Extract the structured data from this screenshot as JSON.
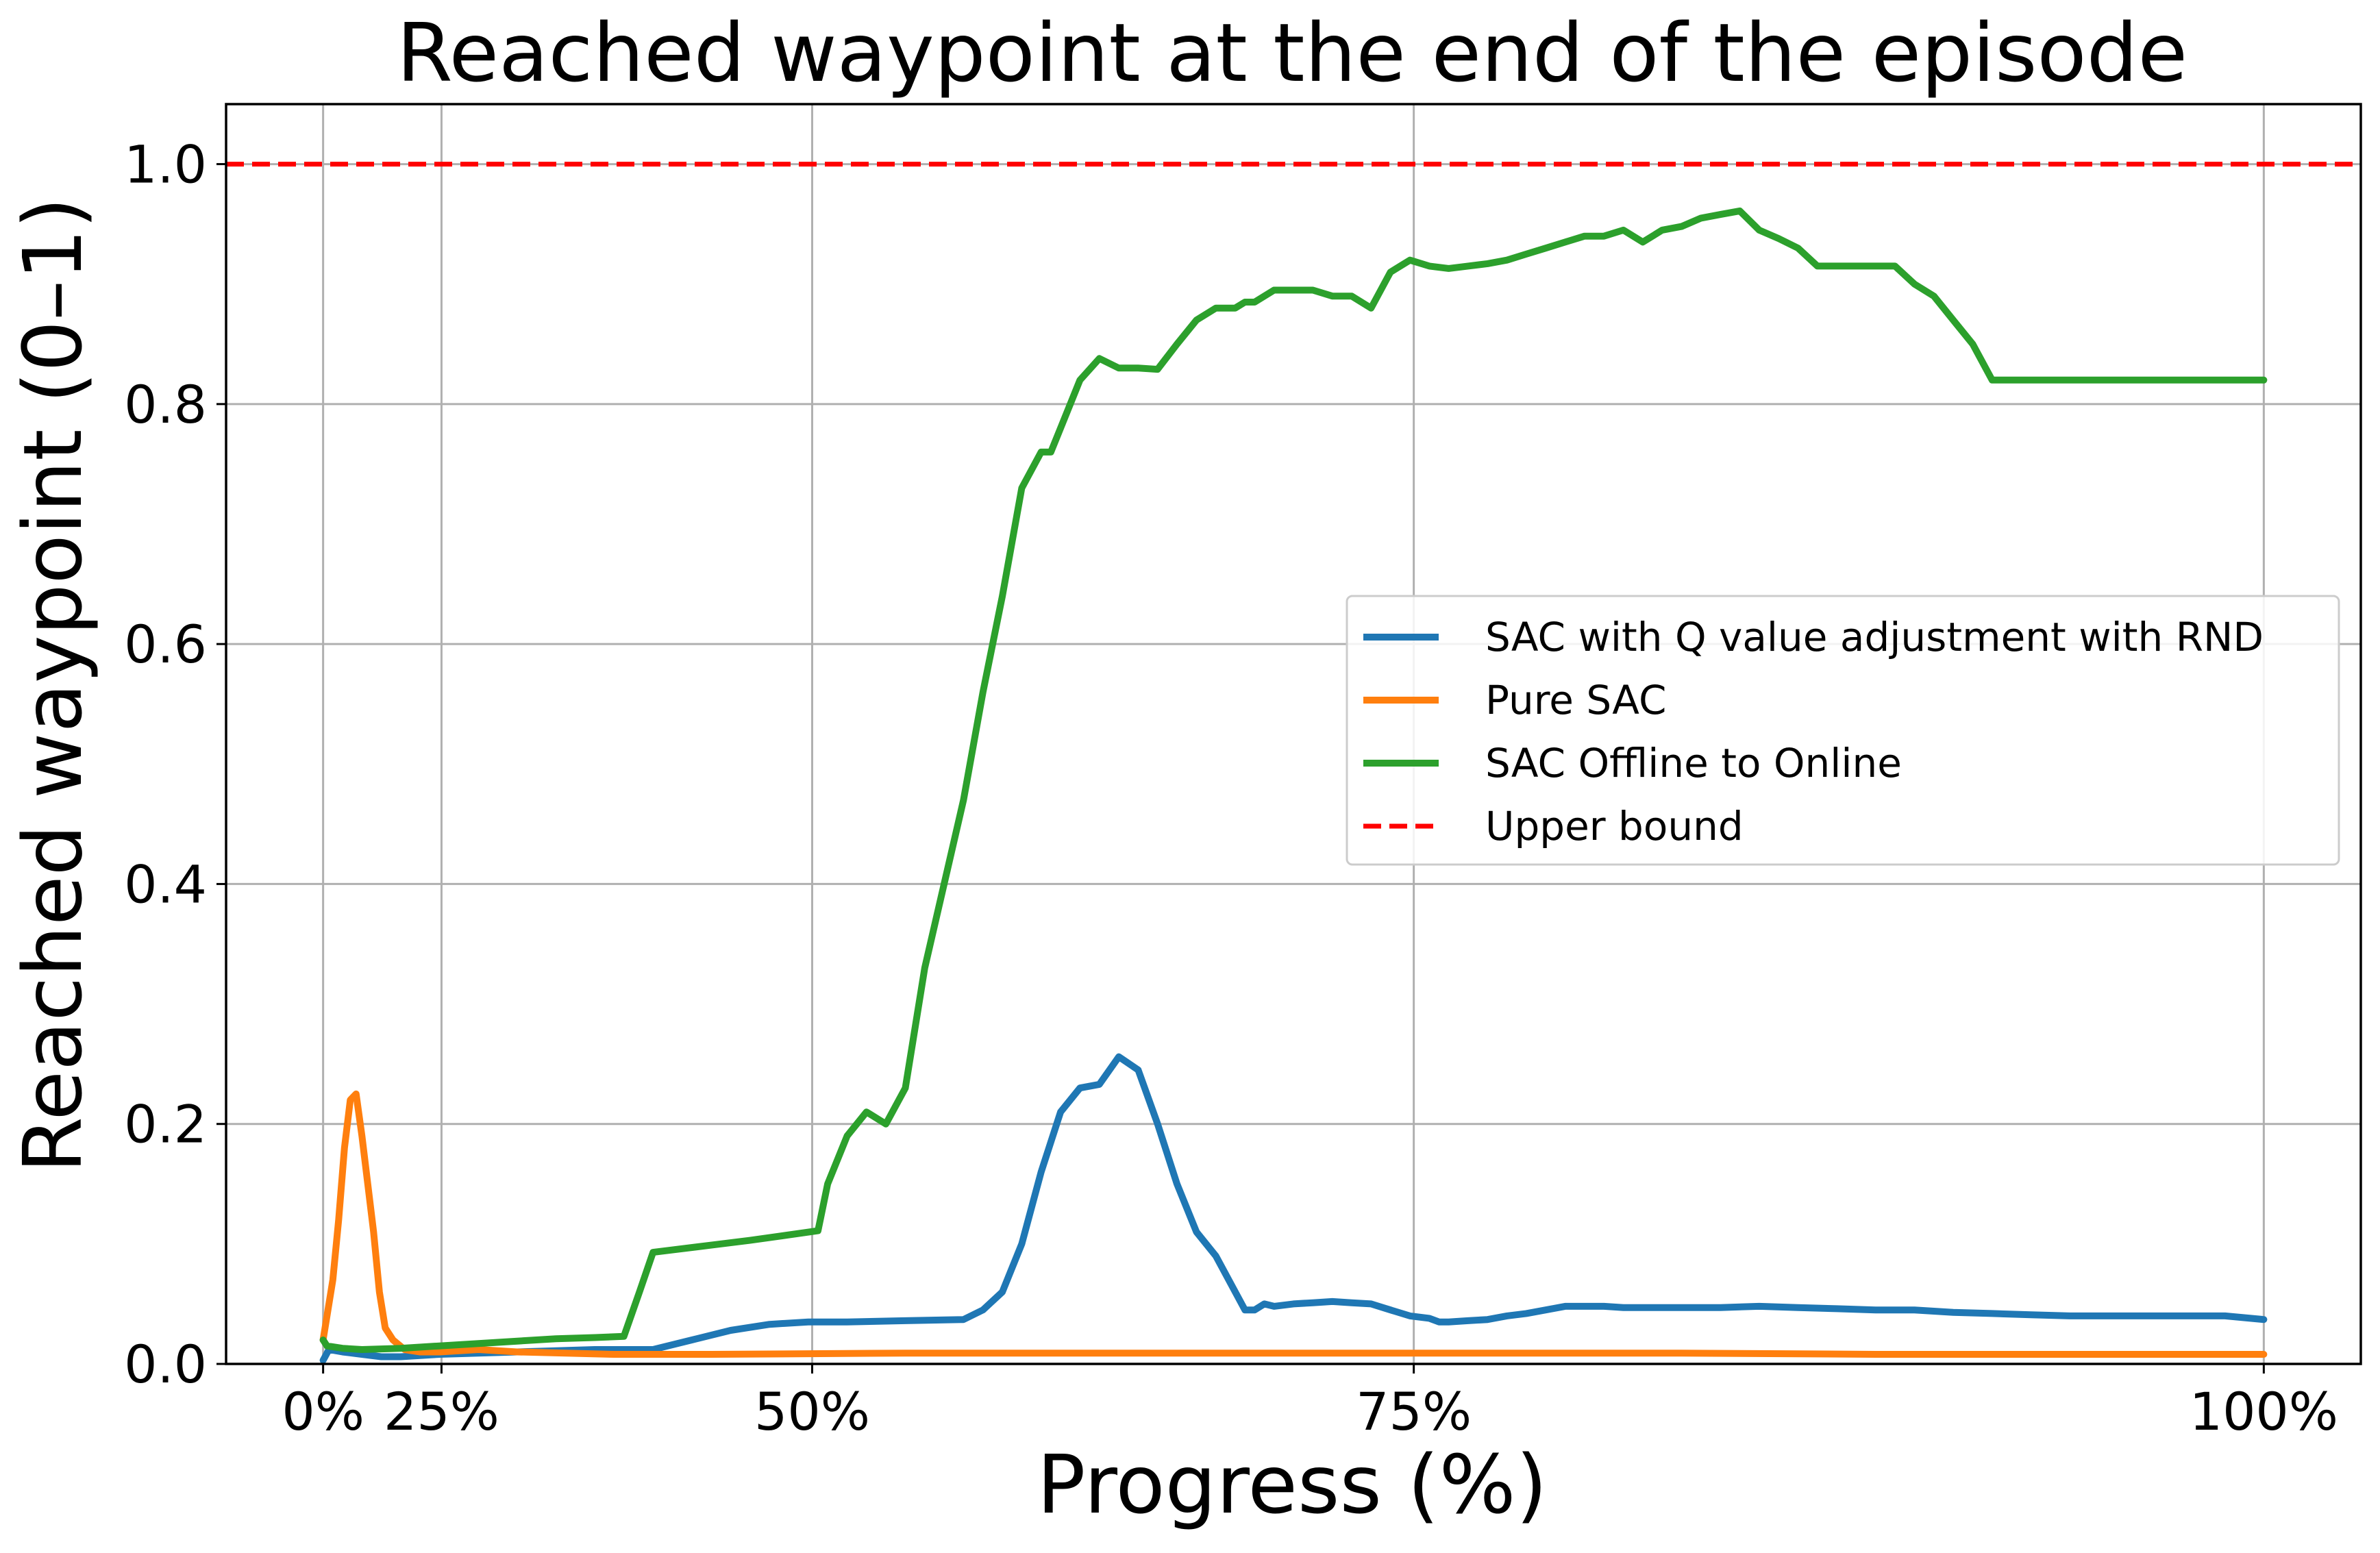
{
  "chart_data": {
    "type": "line",
    "title": "Reached waypoint at the end of the episode",
    "xlabel": "Progress (%)",
    "ylabel": "Reached waypoint (0–1)",
    "xlim": [
      -5,
      105
    ],
    "ylim": [
      0,
      1.05
    ],
    "x_ticks": [
      {
        "value": 0,
        "label": "0%"
      },
      {
        "value": 6.1,
        "label": "25%"
      },
      {
        "value": 25.2,
        "label": "50%"
      },
      {
        "value": 56.2,
        "label": "75%"
      },
      {
        "value": 100,
        "label": "100%"
      }
    ],
    "y_ticks": [
      {
        "value": 0.0,
        "label": "0.0"
      },
      {
        "value": 0.2,
        "label": "0.2"
      },
      {
        "value": 0.4,
        "label": "0.4"
      },
      {
        "value": 0.6,
        "label": "0.6"
      },
      {
        "value": 0.8,
        "label": "0.8"
      },
      {
        "value": 1.0,
        "label": "1.0"
      }
    ],
    "grid": true,
    "legend_position": "center-right",
    "series": [
      {
        "name": "SAC with Q value adjustment with RND",
        "color": "#1f77b4",
        "style": "solid",
        "x": [
          0,
          0.3,
          1,
          2,
          3,
          4,
          5,
          6,
          8,
          10,
          12,
          14,
          15.5,
          17,
          19,
          21,
          23,
          25,
          27,
          30,
          33,
          34,
          35,
          36,
          37,
          38,
          39,
          40,
          41,
          42,
          43,
          44,
          44.5,
          45,
          46,
          47,
          47.5,
          48,
          48.5,
          49,
          50,
          51,
          52,
          53,
          54,
          55,
          56,
          57,
          57.5,
          58,
          59,
          60,
          61,
          62,
          63,
          64,
          65,
          66,
          67,
          68,
          70,
          72,
          74,
          76,
          78,
          80,
          82,
          84,
          86,
          88,
          90,
          92,
          94,
          96,
          98,
          100
        ],
        "y": [
          0.003,
          0.012,
          0.01,
          0.008,
          0.006,
          0.006,
          0.007,
          0.008,
          0.009,
          0.01,
          0.011,
          0.012,
          0.012,
          0.012,
          0.02,
          0.028,
          0.033,
          0.035,
          0.035,
          0.036,
          0.037,
          0.045,
          0.06,
          0.1,
          0.16,
          0.21,
          0.23,
          0.233,
          0.256,
          0.245,
          0.2,
          0.15,
          0.13,
          0.11,
          0.09,
          0.06,
          0.045,
          0.045,
          0.05,
          0.048,
          0.05,
          0.051,
          0.052,
          0.051,
          0.05,
          0.045,
          0.04,
          0.038,
          0.035,
          0.035,
          0.036,
          0.037,
          0.04,
          0.042,
          0.045,
          0.048,
          0.048,
          0.048,
          0.047,
          0.047,
          0.047,
          0.047,
          0.048,
          0.047,
          0.046,
          0.045,
          0.045,
          0.043,
          0.042,
          0.041,
          0.04,
          0.04,
          0.04,
          0.04,
          0.04,
          0.037
        ]
      },
      {
        "name": "Pure SAC",
        "color": "#ff7f0e",
        "style": "solid",
        "x": [
          0,
          0.2,
          0.5,
          0.8,
          1.1,
          1.4,
          1.7,
          2.0,
          2.3,
          2.6,
          2.9,
          3.2,
          3.6,
          4.2,
          5,
          6,
          7,
          8,
          10,
          15,
          20,
          30,
          40,
          50,
          60,
          70,
          80,
          90,
          100
        ],
        "y": [
          0.02,
          0.04,
          0.07,
          0.12,
          0.18,
          0.22,
          0.225,
          0.19,
          0.15,
          0.11,
          0.06,
          0.03,
          0.02,
          0.012,
          0.01,
          0.01,
          0.011,
          0.012,
          0.01,
          0.008,
          0.008,
          0.009,
          0.009,
          0.009,
          0.009,
          0.009,
          0.008,
          0.008,
          0.008
        ]
      },
      {
        "name": "SAC Offline to Online",
        "color": "#2ca02c",
        "style": "solid",
        "x": [
          0,
          0.2,
          1,
          2,
          4,
          6,
          8,
          10,
          12,
          14,
          15.5,
          16.3,
          17,
          18,
          20,
          22,
          25.5,
          26,
          27,
          28,
          29,
          30,
          31,
          32,
          33,
          34,
          35,
          36,
          37,
          37.5,
          38,
          39,
          40,
          41,
          42,
          43,
          44,
          45,
          46,
          47,
          47.5,
          48,
          49,
          50,
          51,
          52,
          53,
          54,
          55,
          56,
          57,
          58,
          59,
          60,
          61,
          62,
          63,
          64,
          65,
          66,
          67,
          68,
          69,
          70,
          71,
          72,
          73,
          74,
          75,
          76,
          77,
          78,
          79,
          80,
          81,
          82,
          83,
          84,
          85,
          86,
          87,
          88,
          89,
          90,
          91,
          92,
          93,
          94,
          95,
          96,
          97,
          98,
          99,
          100
        ],
        "y": [
          0.02,
          0.015,
          0.013,
          0.012,
          0.013,
          0.015,
          0.017,
          0.019,
          0.021,
          0.022,
          0.023,
          0.06,
          0.093,
          0.095,
          0.099,
          0.103,
          0.111,
          0.15,
          0.19,
          0.21,
          0.2,
          0.23,
          0.33,
          0.4,
          0.47,
          0.56,
          0.64,
          0.73,
          0.76,
          0.76,
          0.78,
          0.82,
          0.838,
          0.83,
          0.83,
          0.829,
          0.85,
          0.87,
          0.88,
          0.88,
          0.885,
          0.885,
          0.895,
          0.895,
          0.895,
          0.89,
          0.89,
          0.88,
          0.91,
          0.92,
          0.915,
          0.913,
          0.915,
          0.917,
          0.92,
          0.925,
          0.93,
          0.935,
          0.94,
          0.94,
          0.945,
          0.935,
          0.945,
          0.948,
          0.955,
          0.958,
          0.961,
          0.945,
          0.938,
          0.93,
          0.915,
          0.915,
          0.915,
          0.915,
          0.915,
          0.9,
          0.89,
          0.87,
          0.85,
          0.82,
          0.82,
          0.82,
          0.82,
          0.82,
          0.82,
          0.82,
          0.82,
          0.82,
          0.82,
          0.82,
          0.82,
          0.82,
          0.82,
          0.82
        ]
      },
      {
        "name": "Upper bound",
        "color": "#ff0000",
        "style": "dashed",
        "x": [
          -5,
          105
        ],
        "y": [
          1.0,
          1.0
        ]
      }
    ]
  }
}
